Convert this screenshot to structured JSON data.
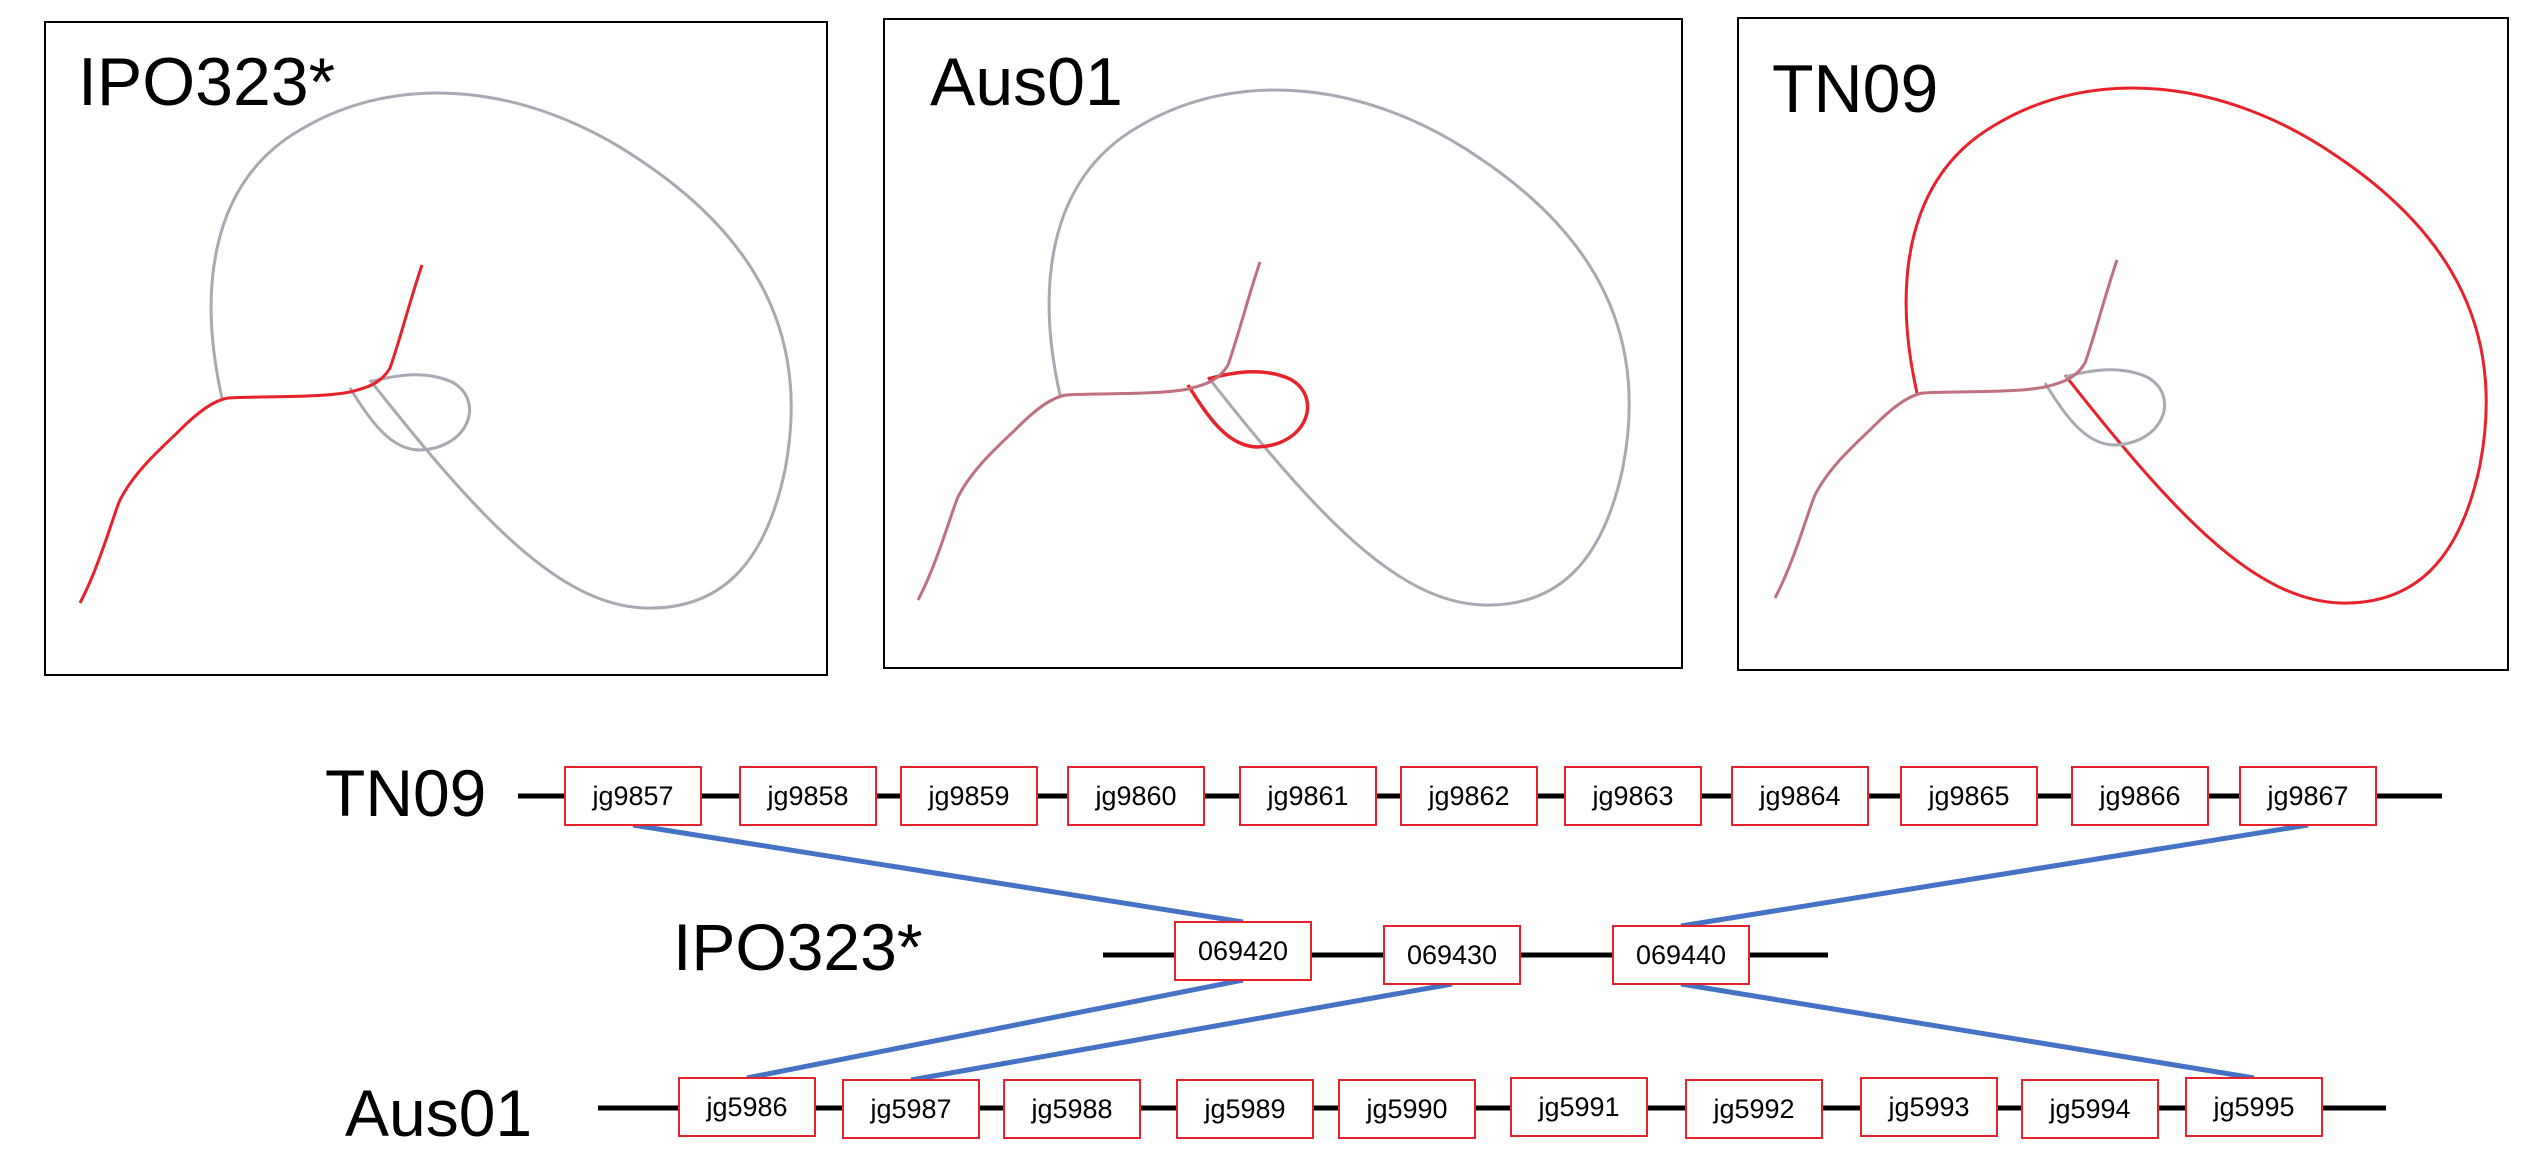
{
  "panels": [
    {
      "label": "IPO323*",
      "highlight": "branch"
    },
    {
      "label": "Aus01",
      "highlight": "small-loop"
    },
    {
      "label": "TN09",
      "highlight": "large-loop"
    }
  ],
  "synteny": {
    "tracks": [
      {
        "label": "TN09",
        "genes": [
          "jg9857",
          "jg9858",
          "jg9859",
          "jg9860",
          "jg9861",
          "jg9862",
          "jg9863",
          "jg9864",
          "jg9865",
          "jg9866",
          "jg9867"
        ]
      },
      {
        "label": "IPO323*",
        "genes": [
          "069420",
          "069430",
          "069440"
        ]
      },
      {
        "label": "Aus01",
        "genes": [
          "jg5986",
          "jg5987",
          "jg5988",
          "jg5989",
          "jg5990",
          "jg5991",
          "jg5992",
          "jg5993",
          "jg5994",
          "jg5995"
        ]
      }
    ],
    "links": [
      {
        "from": "jg9857",
        "to": "069420"
      },
      {
        "from": "jg9867",
        "to": "069440"
      },
      {
        "from": "069420",
        "to": "jg5986"
      },
      {
        "from": "069430",
        "to": "jg5987"
      },
      {
        "from": "069440",
        "to": "jg5995"
      }
    ]
  },
  "colors": {
    "highlight": "#e8222a",
    "graph": "#a9a9b4",
    "gene_box": "#e8222a",
    "link": "#4472c4",
    "axis": "#000000"
  }
}
